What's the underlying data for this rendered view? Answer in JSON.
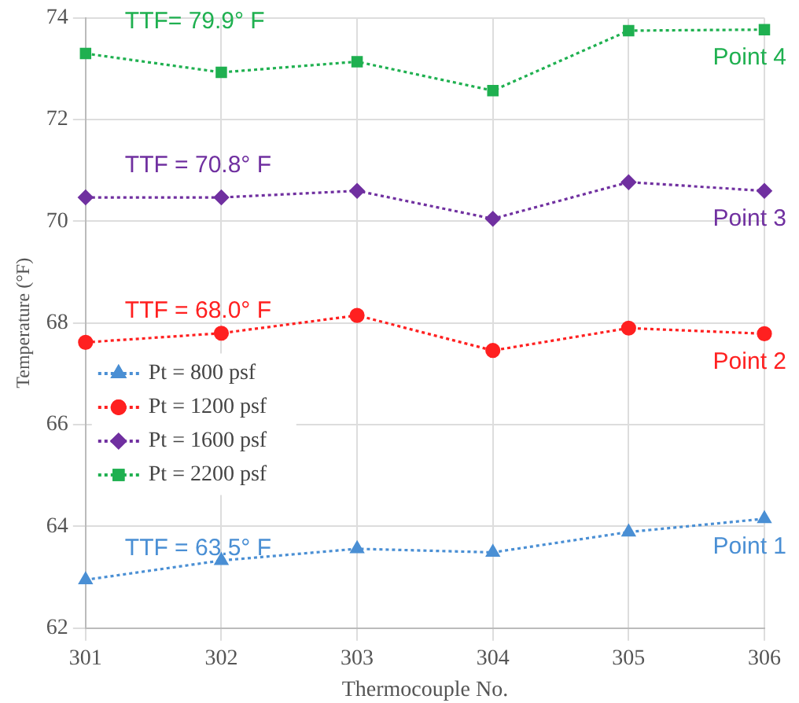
{
  "chart_data": {
    "type": "line",
    "xlabel": "Thermocouple No.",
    "ylabel": "Temperature (°F)",
    "categories": [
      "301",
      "302",
      "303",
      "304",
      "305",
      "306"
    ],
    "series": [
      {
        "name": "Pt = 800 psf",
        "color": "#4a8fd4",
        "marker": "triangle",
        "values": [
          62.95,
          63.33,
          63.56,
          63.49,
          63.89,
          64.15
        ]
      },
      {
        "name": "Pt = 1200 psf",
        "color": "#ff2020",
        "marker": "circle",
        "values": [
          67.62,
          67.8,
          68.15,
          67.46,
          67.9,
          67.79
        ]
      },
      {
        "name": "Pt = 1600 psf",
        "color": "#7030a0",
        "marker": "diamond",
        "values": [
          70.47,
          70.47,
          70.6,
          70.05,
          70.77,
          70.6
        ]
      },
      {
        "name": "Pt = 2200 psf",
        "color": "#1fb050",
        "marker": "square",
        "values": [
          73.3,
          72.93,
          73.14,
          72.57,
          73.75,
          73.77
        ]
      }
    ],
    "ylim": [
      62,
      74
    ],
    "yticks": [
      62,
      64,
      66,
      68,
      70,
      72,
      74
    ],
    "grid": true,
    "legend": "left",
    "line_style": "dotted",
    "annotations": [
      "TTF = 63.5° F",
      "TTF = 68.0° F",
      "TTF = 70.8° F",
      "TTF= 79.9° F",
      "Point 1",
      "Point 2",
      "Point 3",
      "Point 4"
    ]
  }
}
